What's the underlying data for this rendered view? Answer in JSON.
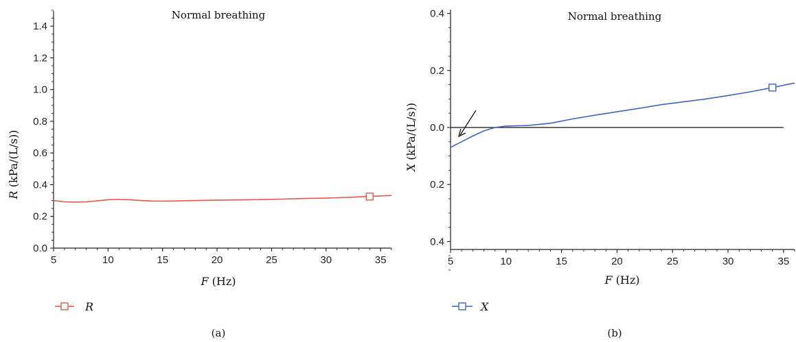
{
  "chart_data": [
    {
      "id": "a",
      "type": "line",
      "title": "Normal breathing",
      "xlabel_var": "F",
      "xlabel_unit": " (Hz)",
      "ylabel_var": "R",
      "ylabel_unit": " (kPa/(L/s))",
      "caption": "(a)",
      "xlim": [
        5,
        36
      ],
      "ylim": [
        0,
        1.5
      ],
      "xticks": [
        "5",
        "10",
        "15",
        "20",
        "25",
        "30",
        "35"
      ],
      "yticks": [
        "0.0",
        "0.2",
        "0.4",
        "0.6",
        "0.8",
        "1.0",
        "1.2",
        "1.4"
      ],
      "grid": false,
      "legend_position": "bottom-left",
      "series": [
        {
          "name": "R",
          "color": "#e8564a",
          "marker": "square",
          "marker_at": [
            34,
            0.325
          ],
          "x": [
            5,
            6,
            7,
            8,
            9,
            10,
            11,
            12,
            13,
            14,
            15,
            16,
            18,
            20,
            22,
            24,
            26,
            28,
            30,
            32,
            34,
            36
          ],
          "y": [
            0.3,
            0.292,
            0.29,
            0.292,
            0.298,
            0.305,
            0.307,
            0.305,
            0.3,
            0.297,
            0.296,
            0.297,
            0.3,
            0.302,
            0.304,
            0.306,
            0.309,
            0.313,
            0.315,
            0.32,
            0.326,
            0.332
          ]
        }
      ]
    },
    {
      "id": "b",
      "type": "line",
      "title": "Normal breathing",
      "xlabel_var": "F",
      "xlabel_unit": " (Hz)",
      "ylabel_var": "X",
      "ylabel_unit": " (kPa/(L/s))",
      "caption": "(b)",
      "xlim": [
        5,
        36
      ],
      "ylim": [
        -0.5,
        0.5
      ],
      "xticks": [
        "5",
        "10",
        "15",
        "20",
        "25",
        "30",
        "35"
      ],
      "ytick_values": [
        0.4,
        0.2,
        0,
        -0.2,
        -0.4
      ],
      "yticks": [
        "0.4",
        "0.2",
        "0.0",
        "0.2",
        "0.4"
      ],
      "grid": false,
      "zero_line": true,
      "legend_position": "bottom-left",
      "annotation": "arrow-at-zero-crossing",
      "series": [
        {
          "name": "X",
          "color": "#3d63c8",
          "marker": "square",
          "marker_at": [
            34,
            0.14
          ],
          "x": [
            5,
            6,
            7,
            8,
            9,
            10,
            11,
            12,
            14,
            16,
            18,
            20,
            22,
            24,
            26,
            28,
            30,
            32,
            34,
            36
          ],
          "y": [
            -0.07,
            -0.05,
            -0.03,
            -0.012,
            0.0,
            0.005,
            0.006,
            0.007,
            0.015,
            0.03,
            0.043,
            0.055,
            0.067,
            0.08,
            0.09,
            0.1,
            0.112,
            0.125,
            0.14,
            0.156
          ]
        }
      ]
    }
  ]
}
